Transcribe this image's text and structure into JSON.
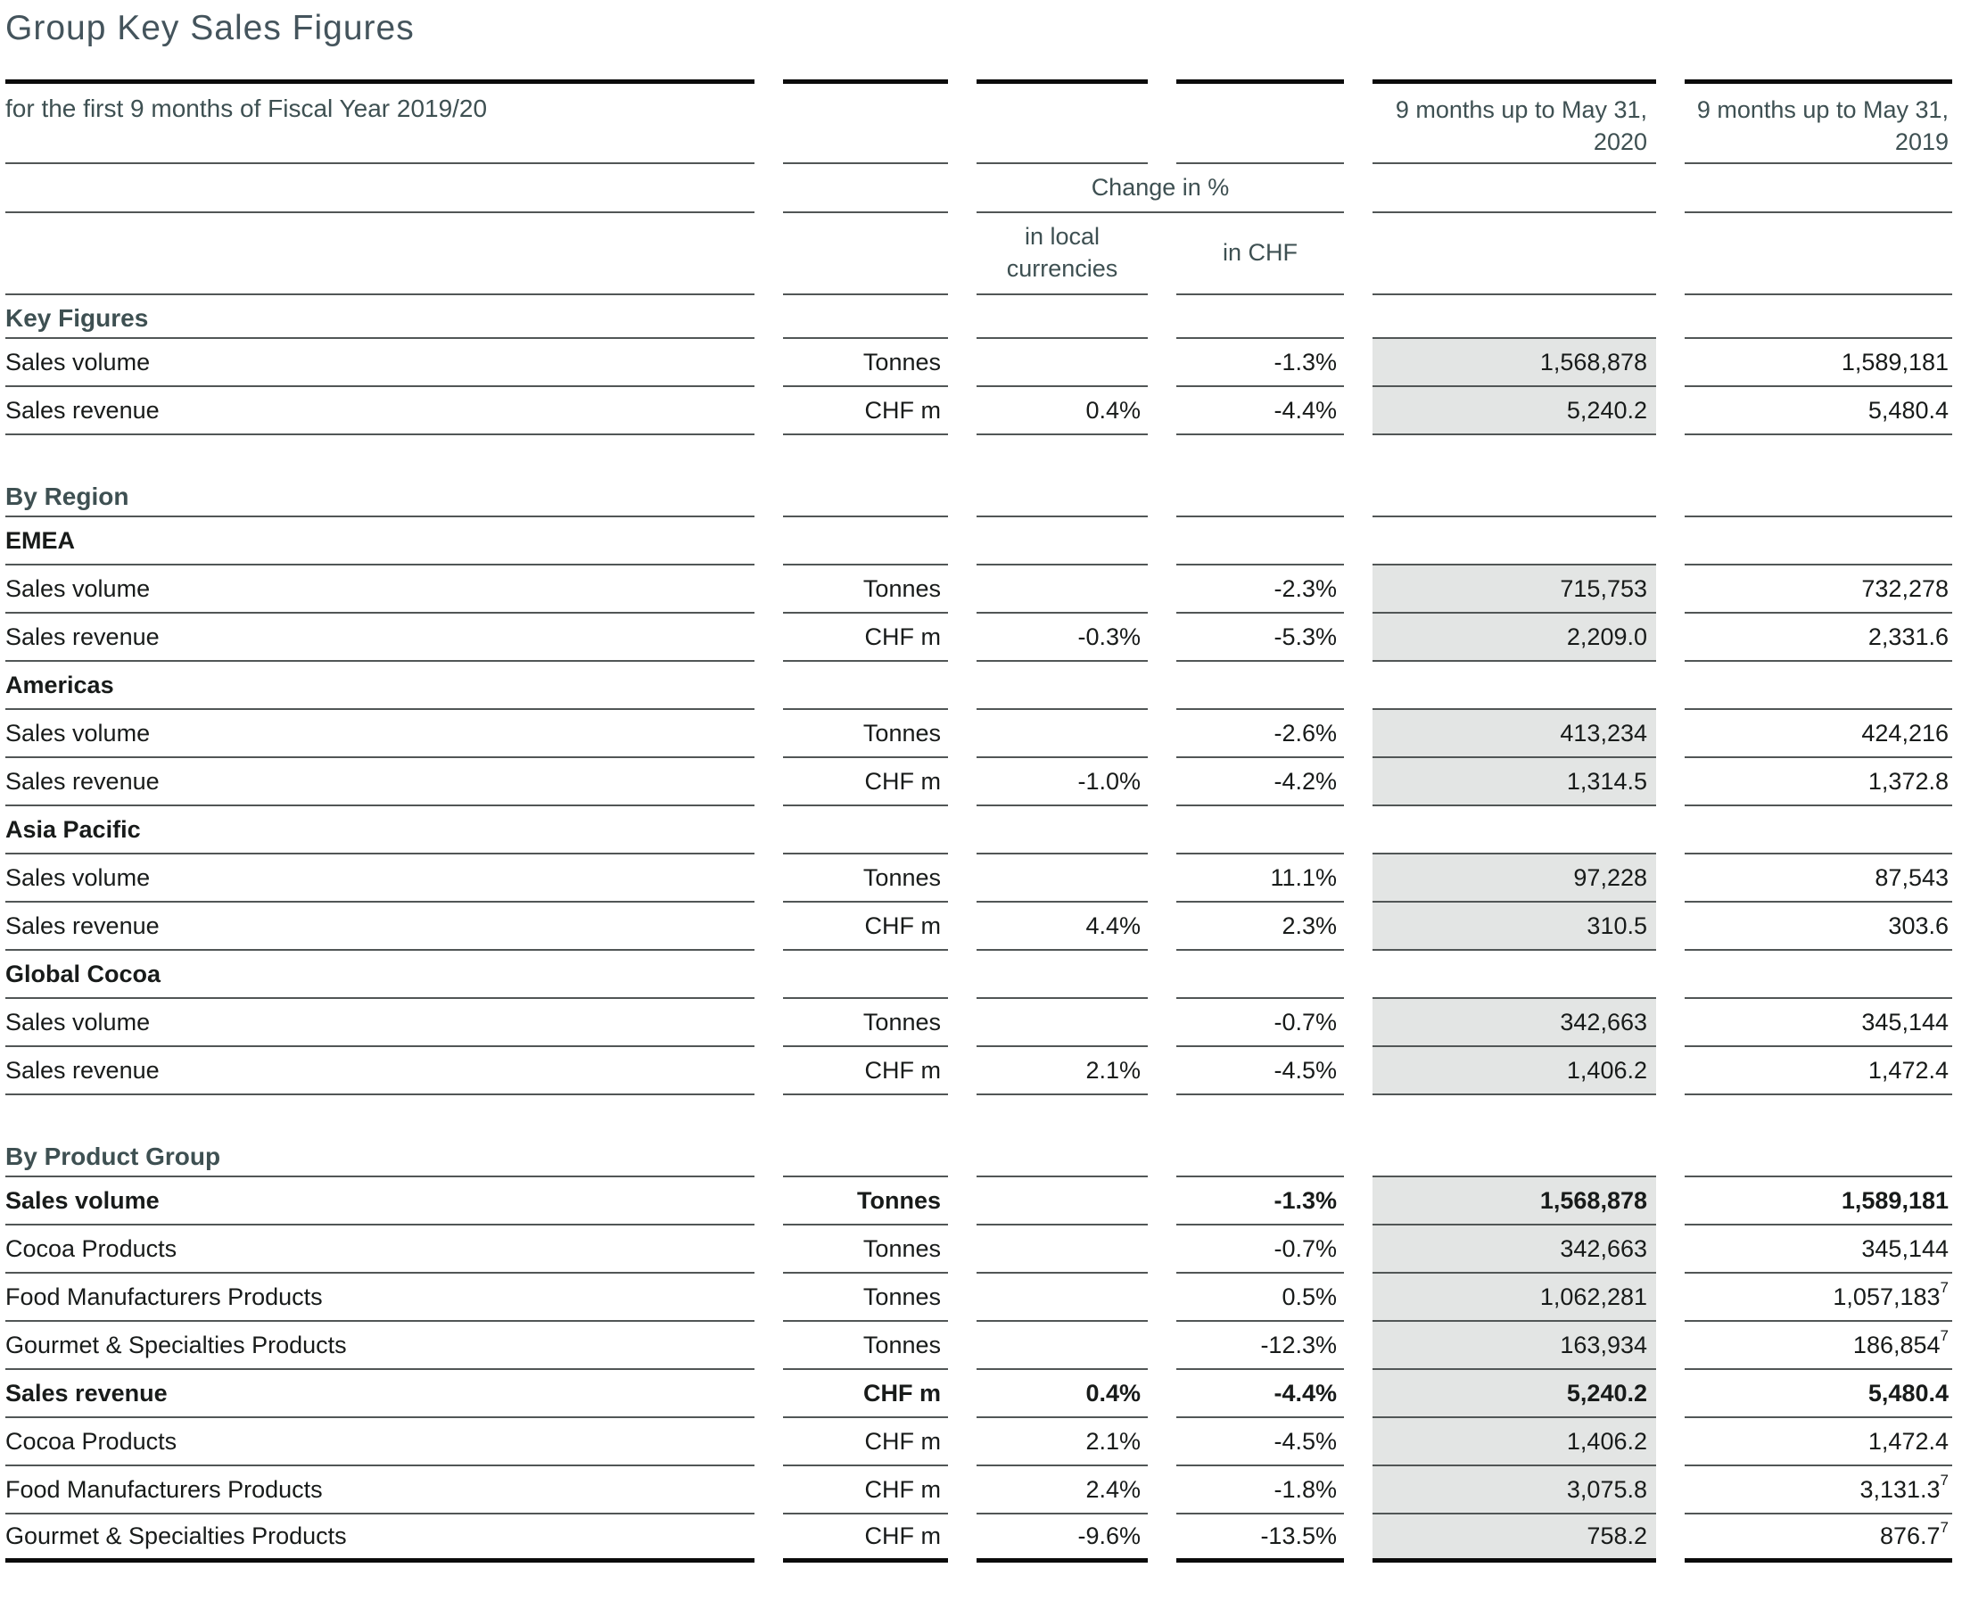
{
  "title": "Group Key Sales Figures",
  "colors": {
    "accent_teal": "#3e5052",
    "highlight_column_bg": "#e3e5e4",
    "rule_thin": "#515656",
    "rule_thick": "#0b0b0b",
    "text": "#181b1a"
  },
  "table": {
    "caption": "for the first 9 months of Fiscal Year 2019/20",
    "columns": {
      "period_2020": "9 months up to May 31, 2020",
      "period_2019": "9 months up to May 31, 2019",
      "change_group": "Change in %",
      "change_local": "in local currencies",
      "change_chf": "in CHF"
    },
    "rows": [
      {
        "type": "section",
        "label": "Key Figures"
      },
      {
        "type": "data",
        "label": "Sales volume",
        "unit": "Tonnes",
        "local": "",
        "chf": "-1.3%",
        "v2020": "1,568,878",
        "v2019": "1,589,181"
      },
      {
        "type": "data",
        "label": "Sales revenue",
        "unit": "CHF m",
        "local": "0.4%",
        "chf": "-4.4%",
        "v2020": "5,240.2",
        "v2019": "5,480.4"
      },
      {
        "type": "gap"
      },
      {
        "type": "section",
        "label": "By Region"
      },
      {
        "type": "subsection",
        "label": "EMEA"
      },
      {
        "type": "data",
        "label": "Sales volume",
        "unit": "Tonnes",
        "local": "",
        "chf": "-2.3%",
        "v2020": "715,753",
        "v2019": "732,278"
      },
      {
        "type": "data",
        "label": "Sales revenue",
        "unit": "CHF m",
        "local": "-0.3%",
        "chf": "-5.3%",
        "v2020": "2,209.0",
        "v2019": "2,331.6"
      },
      {
        "type": "subsection",
        "label": "Americas"
      },
      {
        "type": "data",
        "label": "Sales volume",
        "unit": "Tonnes",
        "local": "",
        "chf": "-2.6%",
        "v2020": "413,234",
        "v2019": "424,216"
      },
      {
        "type": "data",
        "label": "Sales revenue",
        "unit": "CHF m",
        "local": "-1.0%",
        "chf": "-4.2%",
        "v2020": "1,314.5",
        "v2019": "1,372.8"
      },
      {
        "type": "subsection",
        "label": "Asia Pacific"
      },
      {
        "type": "data",
        "label": "Sales volume",
        "unit": "Tonnes",
        "local": "",
        "chf": "11.1%",
        "v2020": "97,228",
        "v2019": "87,543"
      },
      {
        "type": "data",
        "label": "Sales revenue",
        "unit": "CHF m",
        "local": "4.4%",
        "chf": "2.3%",
        "v2020": "310.5",
        "v2019": "303.6"
      },
      {
        "type": "subsection",
        "label": "Global Cocoa"
      },
      {
        "type": "data",
        "label": "Sales volume",
        "unit": "Tonnes",
        "local": "",
        "chf": "-0.7%",
        "v2020": "342,663",
        "v2019": "345,144"
      },
      {
        "type": "data",
        "label": "Sales revenue",
        "unit": "CHF m",
        "local": "2.1%",
        "chf": "-4.5%",
        "v2020": "1,406.2",
        "v2019": "1,472.4"
      },
      {
        "type": "gap"
      },
      {
        "type": "section",
        "label": "By Product Group"
      },
      {
        "type": "data",
        "bold": true,
        "label": "Sales volume",
        "unit": "Tonnes",
        "local": "",
        "chf": "-1.3%",
        "v2020": "1,568,878",
        "v2019": "1,589,181"
      },
      {
        "type": "data",
        "label": "Cocoa Products",
        "unit": "Tonnes",
        "local": "",
        "chf": "-0.7%",
        "v2020": "342,663",
        "v2019": "345,144"
      },
      {
        "type": "data",
        "label": "Food Manufacturers Products",
        "unit": "Tonnes",
        "local": "",
        "chf": "0.5%",
        "v2020": "1,062,281",
        "v2019": "1,057,183",
        "sup2019": "7"
      },
      {
        "type": "data",
        "label": "Gourmet & Specialties Products",
        "unit": "Tonnes",
        "local": "",
        "chf": "-12.3%",
        "v2020": "163,934",
        "v2019": "186,854",
        "sup2019": "7"
      },
      {
        "type": "data",
        "bold": true,
        "label": "Sales revenue",
        "unit": "CHF m",
        "local": "0.4%",
        "chf": "-4.4%",
        "v2020": "5,240.2",
        "v2019": "5,480.4"
      },
      {
        "type": "data",
        "label": "Cocoa Products",
        "unit": "CHF m",
        "local": "2.1%",
        "chf": "-4.5%",
        "v2020": "1,406.2",
        "v2019": "1,472.4"
      },
      {
        "type": "data",
        "label": "Food Manufacturers Products",
        "unit": "CHF m",
        "local": "2.4%",
        "chf": "-1.8%",
        "v2020": "3,075.8",
        "v2019": "3,131.3",
        "sup2019": "7"
      },
      {
        "type": "data",
        "label": "Gourmet & Specialties Products",
        "unit": "CHF m",
        "local": "-9.6%",
        "chf": "-13.5%",
        "v2020": "758.2",
        "v2019": "876.7",
        "sup2019": "7"
      }
    ]
  }
}
